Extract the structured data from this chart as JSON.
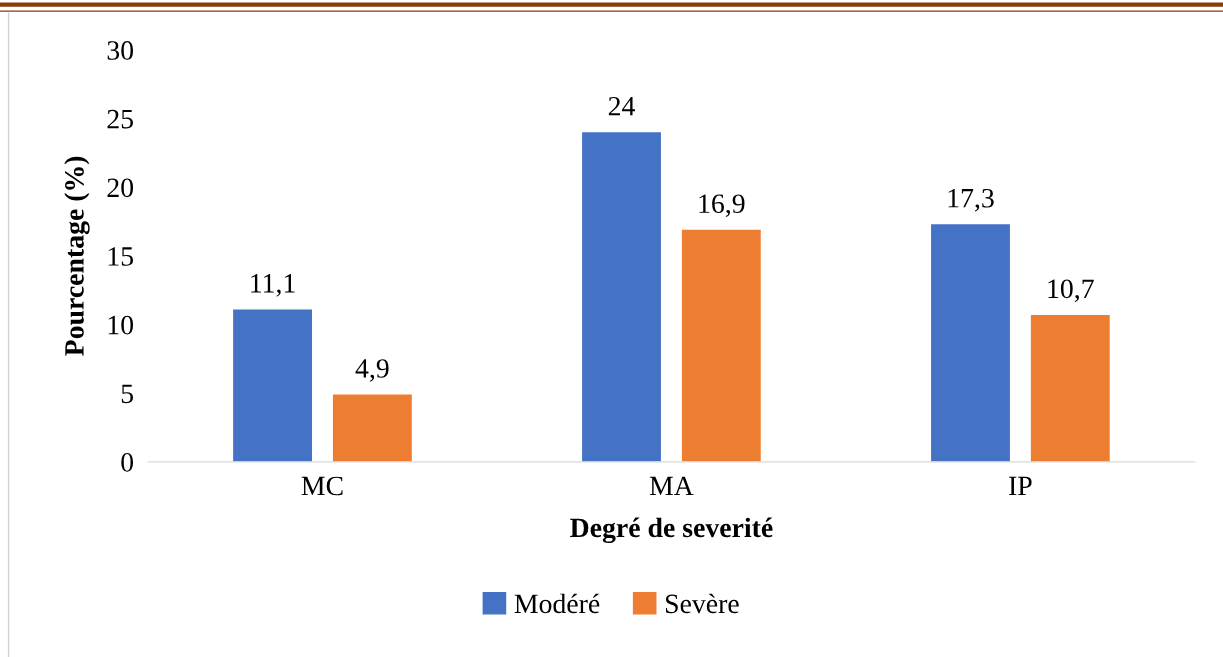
{
  "chart_data": {
    "type": "bar",
    "xlabel": "Degré de severité",
    "ylabel": "Pourcentage (%)",
    "categories": [
      "MC",
      "MA",
      "IP"
    ],
    "series": [
      {
        "name": "Modéré",
        "color": "#4472c4",
        "values": [
          11.1,
          24,
          17.3
        ],
        "value_labels": [
          "11,1",
          "24",
          "17,3"
        ]
      },
      {
        "name": "Sevère",
        "color": "#ed7d31",
        "values": [
          4.9,
          16.9,
          10.7
        ],
        "value_labels": [
          "4,9",
          "16,9",
          "10,7"
        ]
      }
    ],
    "ylim": [
      0,
      30
    ],
    "yticks": [
      0,
      5,
      10,
      15,
      20,
      25,
      30
    ],
    "grid": false,
    "legend": "bottom"
  }
}
